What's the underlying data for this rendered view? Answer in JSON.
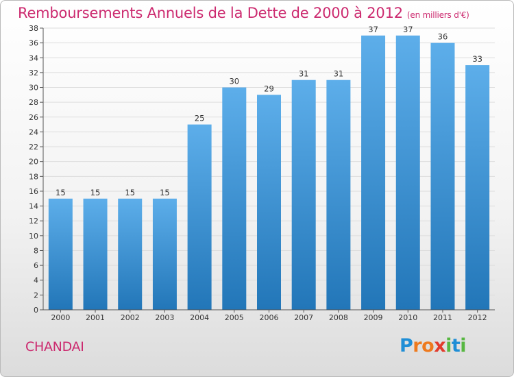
{
  "title": "Remboursements Annuels de la Dette de 2000 à 2012",
  "subtitle": "(en milliers d'€)",
  "city": "CHANDAI",
  "logo": {
    "letters": [
      "P",
      "r",
      "o",
      "x",
      "i",
      "t",
      "i"
    ],
    "colors": [
      "#1f8ed6",
      "#ee7a1e",
      "#ee7a1e",
      "#e23b2c",
      "#57b741",
      "#1f8ed6",
      "#57b741"
    ]
  },
  "colors": {
    "title": "#cc2a6f",
    "bar_top": "#5daeea",
    "bar_bottom": "#2276b8",
    "grid": "#dddddd",
    "axis": "#555555"
  },
  "chart_data": {
    "type": "bar",
    "categories": [
      "2000",
      "2001",
      "2002",
      "2003",
      "2004",
      "2005",
      "2006",
      "2007",
      "2008",
      "2009",
      "2010",
      "2011",
      "2012"
    ],
    "values": [
      15,
      15,
      15,
      15,
      25,
      30,
      29,
      31,
      31,
      37,
      37,
      36,
      33
    ],
    "data_labels": [
      "15",
      "15",
      "15",
      "15",
      "25",
      "30",
      "29",
      "31",
      "31",
      "37",
      "37",
      "36",
      "33"
    ],
    "ylim": [
      0,
      38
    ],
    "yticks": [
      0,
      2,
      4,
      6,
      8,
      10,
      12,
      14,
      16,
      18,
      20,
      22,
      24,
      26,
      28,
      30,
      32,
      34,
      36,
      38
    ],
    "grid": true,
    "xlabel": "",
    "ylabel": ""
  }
}
